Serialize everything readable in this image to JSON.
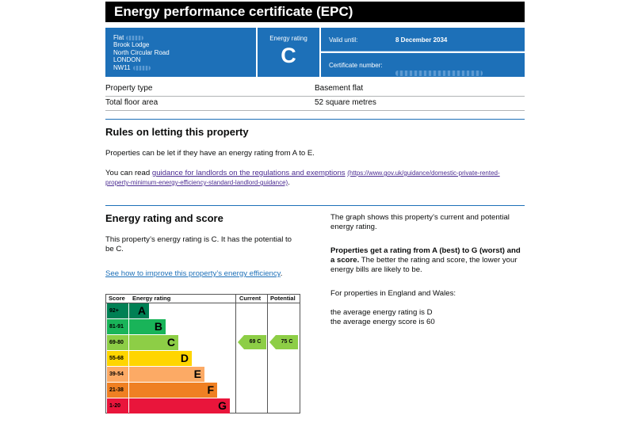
{
  "header": {
    "title": "Energy performance certificate (EPC)"
  },
  "address": {
    "lines": [
      "Flat",
      "Brook Lodge",
      "North Circular Road",
      "LONDON",
      "NW11"
    ]
  },
  "rating_box": {
    "label": "Energy rating",
    "value": "C"
  },
  "validity": {
    "valid_until_label": "Valid until:",
    "valid_until_value": "8 December 2034",
    "cert_label": "Certificate number:"
  },
  "property": {
    "rows": [
      {
        "label": "Property type",
        "value": "Basement flat"
      },
      {
        "label": "Total floor area",
        "value": "52 square metres"
      }
    ]
  },
  "letting": {
    "heading": "Rules on letting this property",
    "para1": "Properties can be let if they have an energy rating from A to E.",
    "para2_prefix": "You can read ",
    "para2_link": "guidance for landlords on the regulations and exemptions",
    "para2_url_line1": "(https://www.gov.uk/guidance/domestic-private-rented-",
    "para2_url_line2": "property-minimum-energy-efficiency-standard-landlord-guidance)",
    "para2_suffix": "."
  },
  "score": {
    "heading": "Energy rating and score",
    "para1_line1": "This property’s energy rating is C. It has the potential to",
    "para1_line2": "be C.",
    "link": "See how to improve this property’s energy efficiency",
    "link_suffix": "."
  },
  "right_text": {
    "p1_line1": "The graph shows this property’s current and potential",
    "p1_line2": "energy rating.",
    "p2_bold_line1": "Properties get a rating from A (best) to G (worst) and",
    "p2_bold_line2": "a score.",
    "p2_rest_line2": " The better the rating and score, the lower your",
    "p2_line3": "energy bills are likely to be.",
    "p3": "For properties in England and Wales:",
    "p4_line1": "the average energy rating is D",
    "p4_line2": "the average energy score is 60"
  },
  "chart_data": {
    "type": "bar",
    "headers": {
      "score": "Score",
      "rating": "Energy rating",
      "current": "Current",
      "potential": "Potential"
    },
    "bands": [
      {
        "score": "92+",
        "letter": "A",
        "color": "#008054"
      },
      {
        "score": "81-91",
        "letter": "B",
        "color": "#19b459"
      },
      {
        "score": "69-80",
        "letter": "C",
        "color": "#8dce46"
      },
      {
        "score": "55-68",
        "letter": "D",
        "color": "#ffd500"
      },
      {
        "score": "39-54",
        "letter": "E",
        "color": "#fcaa65"
      },
      {
        "score": "21-38",
        "letter": "F",
        "color": "#ef8023"
      },
      {
        "score": "1-20",
        "letter": "G",
        "color": "#e9153b"
      }
    ],
    "current": {
      "score": 69,
      "letter": "C",
      "label": "69  C"
    },
    "potential": {
      "score": 75,
      "letter": "C",
      "label": "75  C"
    }
  }
}
